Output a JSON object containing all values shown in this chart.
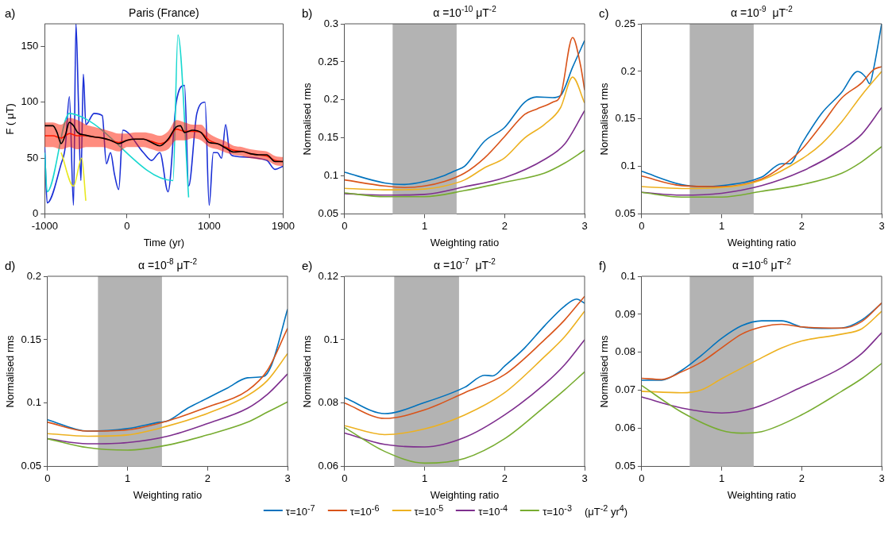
{
  "chart_data": [
    {
      "type": "line",
      "title": "Paris (France)",
      "xlabel": "Time (yr)",
      "ylabel": "F ( μT)",
      "xlim": [
        -1000,
        1900
      ],
      "xticks": [
        -1000,
        0,
        1000,
        1900
      ],
      "ylim": [
        0,
        170
      ],
      "yticks": [
        0,
        50,
        100,
        150
      ],
      "annotations": [
        "a)"
      ],
      "series": [
        {
          "color": "#1a2fd6",
          "x": [
            -1000,
            -970,
            -800,
            -750,
            -700,
            -650,
            -620,
            -590,
            -560,
            -530,
            -500,
            -400,
            -300,
            -250,
            -200,
            -150,
            -100,
            -50,
            200,
            300,
            400,
            500,
            600,
            700,
            750,
            850,
            950,
            1000,
            1050,
            1100,
            1150,
            1200,
            1250,
            1300,
            1700,
            1800,
            1900
          ],
          "values": [
            60,
            10,
            45,
            60,
            105,
            8,
            170,
            100,
            30,
            125,
            80,
            90,
            88,
            45,
            55,
            35,
            22,
            75,
            55,
            48,
            55,
            20,
            100,
            115,
            25,
            90,
            100,
            8,
            55,
            55,
            50,
            80,
            55,
            52,
            48,
            40,
            43
          ]
        },
        {
          "color": "#19d8d0",
          "x": [
            -1000,
            -970,
            -700,
            -500,
            560,
            620,
            750
          ],
          "values": [
            55,
            20,
            90,
            85,
            30,
            160,
            15
          ]
        },
        {
          "color": "#e8e820",
          "x": [
            -800,
            -650,
            -550,
            -500
          ],
          "values": [
            55,
            25,
            50,
            12
          ]
        },
        {
          "color": "#ff1a00",
          "x": [
            -1000,
            -900,
            -800,
            -700,
            -600,
            -500,
            -400,
            -300,
            -200,
            -100,
            0,
            100,
            200,
            300,
            400,
            500,
            600,
            700,
            800,
            900,
            1000,
            1100,
            1200,
            1300,
            1400,
            1500,
            1600,
            1700,
            1800,
            1900
          ],
          "values": [
            70,
            70,
            68,
            72,
            70,
            70,
            69,
            68,
            66,
            64,
            66,
            67,
            67,
            65,
            63,
            66,
            76,
            74,
            74,
            73,
            66,
            63,
            60,
            57,
            56,
            54,
            53,
            52,
            48,
            47
          ],
          "lower": [
            60,
            60,
            58,
            60,
            58,
            60,
            60,
            60,
            58,
            56,
            60,
            60,
            60,
            58,
            56,
            58,
            66,
            66,
            68,
            66,
            60,
            58,
            55,
            53,
            52,
            50,
            49,
            48,
            44,
            43
          ],
          "upper": [
            82,
            82,
            80,
            86,
            84,
            80,
            78,
            76,
            74,
            72,
            72,
            73,
            73,
            72,
            70,
            74,
            84,
            82,
            80,
            80,
            72,
            68,
            65,
            61,
            60,
            58,
            57,
            56,
            52,
            51
          ]
        },
        {
          "color": "#000000",
          "x": [
            -1000,
            -900,
            -850,
            -800,
            -750,
            -700,
            -650,
            -600,
            -500,
            -400,
            -300,
            -200,
            -100,
            0,
            100,
            200,
            300,
            400,
            500,
            600,
            650,
            700,
            800,
            900,
            1000,
            1100,
            1200,
            1300,
            1400,
            1500,
            1600,
            1700,
            1800,
            1900
          ],
          "values": [
            79,
            79,
            73,
            63,
            70.5,
            82,
            79,
            73,
            70.5,
            69,
            68,
            66,
            63,
            66,
            67,
            67,
            64,
            61,
            67,
            78,
            79,
            73,
            75,
            73,
            64,
            63,
            59,
            55.5,
            56,
            54,
            53,
            53,
            47,
            47
          ]
        }
      ]
    },
    {
      "type": "line",
      "title": "α =10$^{-10}$ μT$^{-2}$",
      "xlabel": "Weighting ratio",
      "ylabel": "Normalised rms",
      "xlim": [
        0,
        3
      ],
      "xticks": [
        0,
        1,
        2,
        3
      ],
      "ylim": [
        0.05,
        0.3
      ],
      "yticks": [
        0.05,
        0.1,
        0.15,
        0.2,
        0.25,
        0.3
      ],
      "annotations": [
        "b)"
      ],
      "bands": [
        {
          "axis": "x",
          "from": 0.6,
          "to": 1.4,
          "color": "#b3b3b3"
        }
      ],
      "series": [
        {
          "color": "#0072bd",
          "x": [
            0,
            0.5,
            0.75,
            1,
            1.25,
            1.4,
            1.5,
            1.75,
            2,
            2.25,
            2.4,
            2.6,
            2.7,
            2.85,
            3
          ],
          "values": [
            0.105,
            0.091,
            0.089,
            0.093,
            0.101,
            0.108,
            0.113,
            0.146,
            0.164,
            0.197,
            0.204,
            0.203,
            0.206,
            0.243,
            0.278
          ]
        },
        {
          "color": "#d95319",
          "x": [
            0,
            0.5,
            0.75,
            1,
            1.25,
            1.5,
            1.75,
            2,
            2.25,
            2.4,
            2.6,
            2.7,
            2.85,
            2.95,
            3
          ],
          "values": [
            0.095,
            0.087,
            0.085,
            0.087,
            0.093,
            0.104,
            0.124,
            0.152,
            0.181,
            0.188,
            0.197,
            0.206,
            0.282,
            0.245,
            0.213
          ]
        },
        {
          "color": "#edb120",
          "x": [
            0,
            0.5,
            1,
            1.25,
            1.5,
            1.75,
            2,
            2.25,
            2.5,
            2.7,
            2.85,
            3
          ],
          "values": [
            0.084,
            0.082,
            0.083,
            0.087,
            0.095,
            0.111,
            0.124,
            0.15,
            0.168,
            0.19,
            0.23,
            0.196
          ]
        },
        {
          "color": "#7e2f8e",
          "x": [
            0,
            0.5,
            1,
            1.5,
            2,
            2.5,
            2.75,
            3
          ],
          "values": [
            0.077,
            0.075,
            0.076,
            0.086,
            0.098,
            0.122,
            0.142,
            0.186
          ]
        },
        {
          "color": "#77ac30",
          "x": [
            0,
            0.5,
            1,
            1.5,
            2,
            2.5,
            2.75,
            3
          ],
          "values": [
            0.078,
            0.073,
            0.073,
            0.081,
            0.092,
            0.104,
            0.117,
            0.134
          ]
        }
      ]
    },
    {
      "type": "line",
      "title": "α =10$^{-9}$  μT$^{-2}$",
      "xlabel": "Weighting ratio",
      "ylabel": "Normalised rms",
      "xlim": [
        0,
        3
      ],
      "xticks": [
        0,
        1,
        2,
        3
      ],
      "ylim": [
        0.05,
        0.25
      ],
      "yticks": [
        0.05,
        0.1,
        0.15,
        0.2,
        0.25
      ],
      "annotations": [
        "c)"
      ],
      "bands": [
        {
          "axis": "x",
          "from": 0.6,
          "to": 1.4,
          "color": "#b3b3b3"
        }
      ],
      "series": [
        {
          "color": "#0072bd",
          "x": [
            0,
            0.5,
            0.75,
            1,
            1.5,
            1.75,
            1.85,
            2,
            2.25,
            2.5,
            2.7,
            2.8,
            2.85,
            2.9,
            3
          ],
          "values": [
            0.095,
            0.081,
            0.079,
            0.08,
            0.089,
            0.103,
            0.103,
            0.124,
            0.156,
            0.178,
            0.2,
            0.194,
            0.187,
            0.203,
            0.25
          ]
        },
        {
          "color": "#d95319",
          "x": [
            0,
            0.5,
            1,
            1.5,
            1.75,
            2,
            2.25,
            2.5,
            2.75,
            2.9,
            3
          ],
          "values": [
            0.09,
            0.08,
            0.079,
            0.087,
            0.1,
            0.118,
            0.144,
            0.172,
            0.188,
            0.202,
            0.205
          ]
        },
        {
          "color": "#edb120",
          "x": [
            0,
            0.5,
            1,
            1.5,
            2,
            2.25,
            2.5,
            2.75,
            3
          ],
          "values": [
            0.079,
            0.077,
            0.078,
            0.086,
            0.108,
            0.124,
            0.147,
            0.175,
            0.2
          ]
        },
        {
          "color": "#7e2f8e",
          "x": [
            0,
            0.5,
            1,
            1.5,
            2,
            2.5,
            2.75,
            3
          ],
          "values": [
            0.073,
            0.07,
            0.072,
            0.08,
            0.095,
            0.118,
            0.134,
            0.162
          ]
        },
        {
          "color": "#77ac30",
          "x": [
            0,
            0.5,
            1,
            1.5,
            2,
            2.5,
            2.75,
            3
          ],
          "values": [
            0.073,
            0.068,
            0.068,
            0.074,
            0.081,
            0.093,
            0.105,
            0.121
          ]
        }
      ]
    },
    {
      "type": "line",
      "title": "α =10$^{-8}$ μT$^{-2}$",
      "xlabel": "Weighting ratio",
      "ylabel": "Normalised rms",
      "xlim": [
        0,
        3
      ],
      "xticks": [
        0,
        1,
        2,
        3
      ],
      "ylim": [
        0.05,
        0.2
      ],
      "yticks": [
        0.05,
        0.1,
        0.15,
        0.2
      ],
      "annotations": [
        "d)"
      ],
      "bands": [
        {
          "axis": "x",
          "from": 0.63,
          "to": 1.43,
          "color": "#b3b3b3"
        }
      ],
      "series": [
        {
          "color": "#0072bd",
          "x": [
            0,
            0.5,
            1,
            1.4,
            1.5,
            1.75,
            2,
            2.25,
            2.5,
            2.7,
            2.8,
            3
          ],
          "values": [
            0.087,
            0.078,
            0.08,
            0.085,
            0.086,
            0.096,
            0.104,
            0.112,
            0.12,
            0.121,
            0.13,
            0.174
          ]
        },
        {
          "color": "#d95319",
          "x": [
            0,
            0.5,
            1,
            1.5,
            2,
            2.5,
            2.75,
            3
          ],
          "values": [
            0.085,
            0.078,
            0.079,
            0.086,
            0.097,
            0.11,
            0.126,
            0.159
          ]
        },
        {
          "color": "#edb120",
          "x": [
            0,
            0.5,
            1,
            1.5,
            2,
            2.5,
            2.75,
            3
          ],
          "values": [
            0.076,
            0.074,
            0.075,
            0.082,
            0.092,
            0.106,
            0.118,
            0.139
          ]
        },
        {
          "color": "#7e2f8e",
          "x": [
            0,
            0.5,
            1,
            1.5,
            2,
            2.5,
            2.75,
            3
          ],
          "values": [
            0.072,
            0.068,
            0.069,
            0.074,
            0.084,
            0.096,
            0.107,
            0.123
          ]
        },
        {
          "color": "#77ac30",
          "x": [
            0,
            0.5,
            1,
            1.5,
            2,
            2.5,
            2.75,
            3
          ],
          "values": [
            0.072,
            0.065,
            0.063,
            0.067,
            0.075,
            0.085,
            0.093,
            0.101
          ]
        }
      ]
    },
    {
      "type": "line",
      "title": "α =10$^{-7}$  μT$^{-2}$",
      "xlabel": "Weighting ratio",
      "ylabel": "Normalised rms",
      "xlim": [
        0,
        3
      ],
      "xticks": [
        0,
        1,
        2,
        3
      ],
      "ylim": [
        0.06,
        0.12
      ],
      "yticks": [
        0.06,
        0.08,
        0.1,
        0.12
      ],
      "annotations": [
        "e)"
      ],
      "bands": [
        {
          "axis": "x",
          "from": 0.62,
          "to": 1.43,
          "color": "#b3b3b3"
        }
      ],
      "legend": "bottom",
      "legend_title": "(μT$^{-2}$ yr$^{4}$)",
      "series": [
        {
          "name": "τ=10$^{-7}$",
          "color": "#0072bd",
          "x": [
            0,
            0.5,
            1,
            1.5,
            1.75,
            1.85,
            2,
            2.25,
            2.5,
            2.75,
            2.9,
            3
          ],
          "values": [
            0.0817,
            0.0767,
            0.0802,
            0.085,
            0.0888,
            0.0886,
            0.0917,
            0.0974,
            0.1044,
            0.1106,
            0.1128,
            0.1115
          ]
        },
        {
          "name": "τ=10$^{-6}$",
          "color": "#d95319",
          "x": [
            0,
            0.5,
            1,
            1.5,
            2,
            2.5,
            2.75,
            3
          ],
          "values": [
            0.08,
            0.0752,
            0.0779,
            0.0833,
            0.089,
            0.1,
            0.1062,
            0.1137
          ]
        },
        {
          "name": "τ=10$^{-5}$",
          "color": "#edb120",
          "x": [
            0,
            0.5,
            1,
            1.5,
            2,
            2.5,
            2.75,
            3
          ],
          "values": [
            0.0729,
            0.0701,
            0.0719,
            0.0763,
            0.0833,
            0.0947,
            0.1009,
            0.109
          ]
        },
        {
          "name": "τ=10$^{-4}$",
          "color": "#7e2f8e",
          "x": [
            0,
            0.5,
            1,
            1.5,
            2,
            2.5,
            2.75,
            3
          ],
          "values": [
            0.0706,
            0.067,
            0.0662,
            0.0692,
            0.0763,
            0.086,
            0.0921,
            0.1
          ]
        },
        {
          "name": "τ=10$^{-3}$",
          "color": "#77ac30",
          "x": [
            0,
            0.5,
            1,
            1.5,
            2,
            2.5,
            2.75,
            3
          ],
          "values": [
            0.0723,
            0.0648,
            0.0611,
            0.0626,
            0.0688,
            0.0789,
            0.0842,
            0.0899
          ]
        }
      ]
    },
    {
      "type": "line",
      "title": "α =10$^{-6}$ μT$^{-2}$",
      "xlabel": "Weighting ratio",
      "ylabel": "Normalised rms",
      "xlim": [
        0,
        3
      ],
      "xticks": [
        0,
        1,
        2,
        3
      ],
      "ylim": [
        0.05,
        0.1
      ],
      "yticks": [
        0.05,
        0.06,
        0.07,
        0.08,
        0.09,
        0.1
      ],
      "annotations": [
        "f)"
      ],
      "bands": [
        {
          "axis": "x",
          "from": 0.6,
          "to": 1.4,
          "color": "#b3b3b3"
        }
      ],
      "series": [
        {
          "color": "#0072bd",
          "x": [
            0,
            0.25,
            0.5,
            0.75,
            1,
            1.25,
            1.5,
            1.75,
            2,
            2.25,
            2.5,
            2.75,
            3
          ],
          "values": [
            0.0727,
            0.0727,
            0.0753,
            0.0793,
            0.0837,
            0.087,
            0.0883,
            0.0883,
            0.0867,
            0.0863,
            0.0864,
            0.0885,
            0.0929
          ]
        },
        {
          "color": "#d95319",
          "x": [
            0,
            0.25,
            0.5,
            0.75,
            1,
            1.25,
            1.5,
            1.75,
            2,
            2.5,
            2.75,
            3
          ],
          "values": [
            0.0732,
            0.0729,
            0.0749,
            0.0775,
            0.0812,
            0.0848,
            0.0867,
            0.0874,
            0.0867,
            0.0864,
            0.0881,
            0.093
          ]
        },
        {
          "color": "#edb120",
          "x": [
            0,
            0.5,
            0.75,
            1,
            1.4,
            1.75,
            2,
            2.5,
            2.75,
            3
          ],
          "values": [
            0.0698,
            0.0694,
            0.0702,
            0.0731,
            0.0775,
            0.0812,
            0.083,
            0.0848,
            0.0862,
            0.0908
          ]
        },
        {
          "color": "#7e2f8e",
          "x": [
            0,
            0.5,
            1,
            1.4,
            2,
            2.5,
            2.75,
            3
          ],
          "values": [
            0.0683,
            0.0654,
            0.0641,
            0.0654,
            0.0709,
            0.076,
            0.0797,
            0.0852
          ]
        },
        {
          "color": "#77ac30",
          "x": [
            0,
            0.5,
            1,
            1.25,
            1.5,
            2,
            2.5,
            2.75,
            3
          ],
          "values": [
            0.0713,
            0.0643,
            0.0595,
            0.0588,
            0.0592,
            0.0636,
            0.0698,
            0.0731,
            0.0771
          ]
        }
      ]
    }
  ]
}
